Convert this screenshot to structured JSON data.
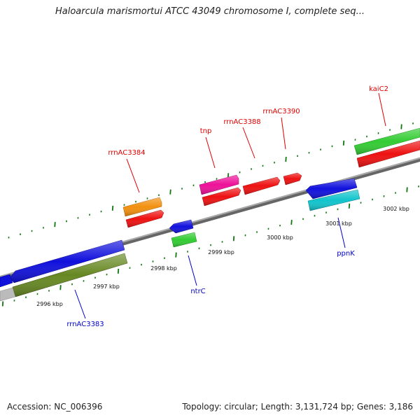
{
  "title": "Haloarcula marismortui ATCC 43049 chromosome I, complete seq...",
  "footer": {
    "accession": "Accession: NC_006396",
    "summary": "Topology: circular; Length: 3,131,724 bp; Genes: 3,186"
  },
  "position_labels": [
    "2996 kbp",
    "2997 kbp",
    "2998 kbp",
    "2999 kbp",
    "3000 kbp",
    "3001 kbp",
    "3002 kbp"
  ],
  "gene_labels": [
    {
      "text": "rrnAC3384",
      "color": "#e00000"
    },
    {
      "text": "tnp",
      "color": "#e00000"
    },
    {
      "text": "rrnAC3388",
      "color": "#e00000"
    },
    {
      "text": "rrnAC3390",
      "color": "#e00000"
    },
    {
      "text": "kaiC2",
      "color": "#e00000"
    },
    {
      "text": "ntrC",
      "color": "#0000cc"
    },
    {
      "text": "rrnAC3383",
      "color": "#0000cc"
    },
    {
      "text": "ppnK",
      "color": "#0000cc"
    }
  ],
  "colors": {
    "backbone": "#888888",
    "tick": "#117711",
    "orange": "#f29010",
    "red": "#ee1111",
    "pink": "#ee1199",
    "blue": "#1111dd",
    "green": "#33cc33",
    "olive": "#668822",
    "cyan": "#11c4cc",
    "grey": "#bbbbbb"
  }
}
